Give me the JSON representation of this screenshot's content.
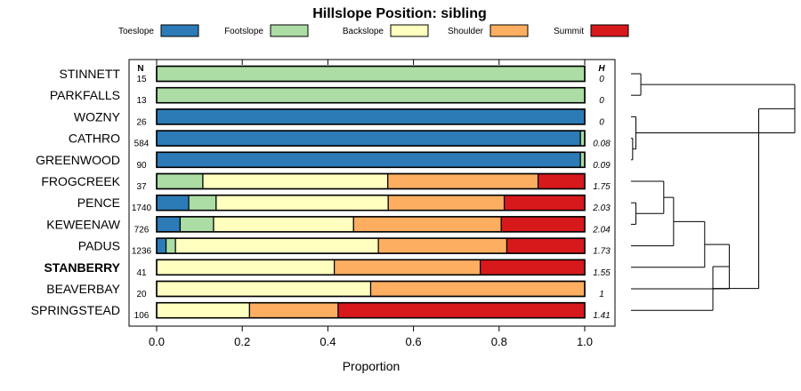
{
  "chart_data": {
    "type": "bar",
    "orientation": "horizontal",
    "stacked": true,
    "title": "Hillslope Position: sibling",
    "xlabel": "Proportion",
    "ylabel": "",
    "xlim": [
      0,
      1
    ],
    "xticks": [
      "0.0",
      "0.2",
      "0.4",
      "0.6",
      "0.8",
      "1.0"
    ],
    "xtick_values": [
      0,
      0.2,
      0.4,
      0.6,
      0.8,
      1.0
    ],
    "n_header": "N",
    "h_header": "H",
    "legend": [
      {
        "name": "Toeslope",
        "color": "#2c7bb6"
      },
      {
        "name": "Footslope",
        "color": "#abdda4"
      },
      {
        "name": "Backslope",
        "color": "#ffffbf"
      },
      {
        "name": "Shoulder",
        "color": "#fdae61"
      },
      {
        "name": "Summit",
        "color": "#d7191c"
      }
    ],
    "categories": [
      "STINNETT",
      "PARKFALLS",
      "WOZNY",
      "CATHRO",
      "GREENWOOD",
      "FROGCREEK",
      "PENCE",
      "KEWEENAW",
      "PADUS",
      "STANBERRY",
      "BEAVERBAY",
      "SPRINGSTEAD"
    ],
    "highlighted": "STANBERRY",
    "n": [
      "15",
      "13",
      "26",
      "584",
      "90",
      "37",
      "1740",
      "726",
      "1236",
      "41",
      "20",
      "106"
    ],
    "h": [
      "0",
      "0",
      "0",
      "0.08",
      "0.09",
      "1.75",
      "2.03",
      "2.04",
      "1.73",
      "1.55",
      "1",
      "1.41"
    ],
    "series": [
      {
        "name": "Toeslope",
        "values": [
          0,
          0,
          1,
          0.99,
          0.99,
          0,
          0.075,
          0.055,
          0.022,
          0,
          0,
          0
        ]
      },
      {
        "name": "Footslope",
        "values": [
          1,
          1,
          0,
          0.01,
          0.01,
          0.108,
          0.064,
          0.078,
          0.022,
          0,
          0,
          0
        ]
      },
      {
        "name": "Backslope",
        "values": [
          0,
          0,
          0,
          0,
          0,
          0.432,
          0.402,
          0.327,
          0.474,
          0.415,
          0.5,
          0.217
        ]
      },
      {
        "name": "Shoulder",
        "values": [
          0,
          0,
          0,
          0,
          0,
          0.351,
          0.271,
          0.345,
          0.3,
          0.341,
          0.5,
          0.207
        ]
      },
      {
        "name": "Summit",
        "values": [
          0,
          0,
          0,
          0,
          0,
          0.109,
          0.188,
          0.195,
          0.182,
          0.244,
          0,
          0.576
        ]
      }
    ],
    "dendrogram": {
      "merges": [
        [
          0,
          1,
          0.06
        ],
        [
          3,
          4,
          0.01
        ],
        [
          2,
          13,
          0.03
        ],
        [
          6,
          7,
          0.03
        ],
        [
          5,
          15,
          0.2
        ],
        [
          8,
          16,
          0.26
        ],
        [
          9,
          17,
          0.45
        ],
        [
          10,
          18,
          0.6
        ],
        [
          14,
          12,
          1.0
        ],
        [
          11,
          19,
          0.5
        ],
        [
          20,
          21,
          0.78
        ]
      ]
    }
  }
}
